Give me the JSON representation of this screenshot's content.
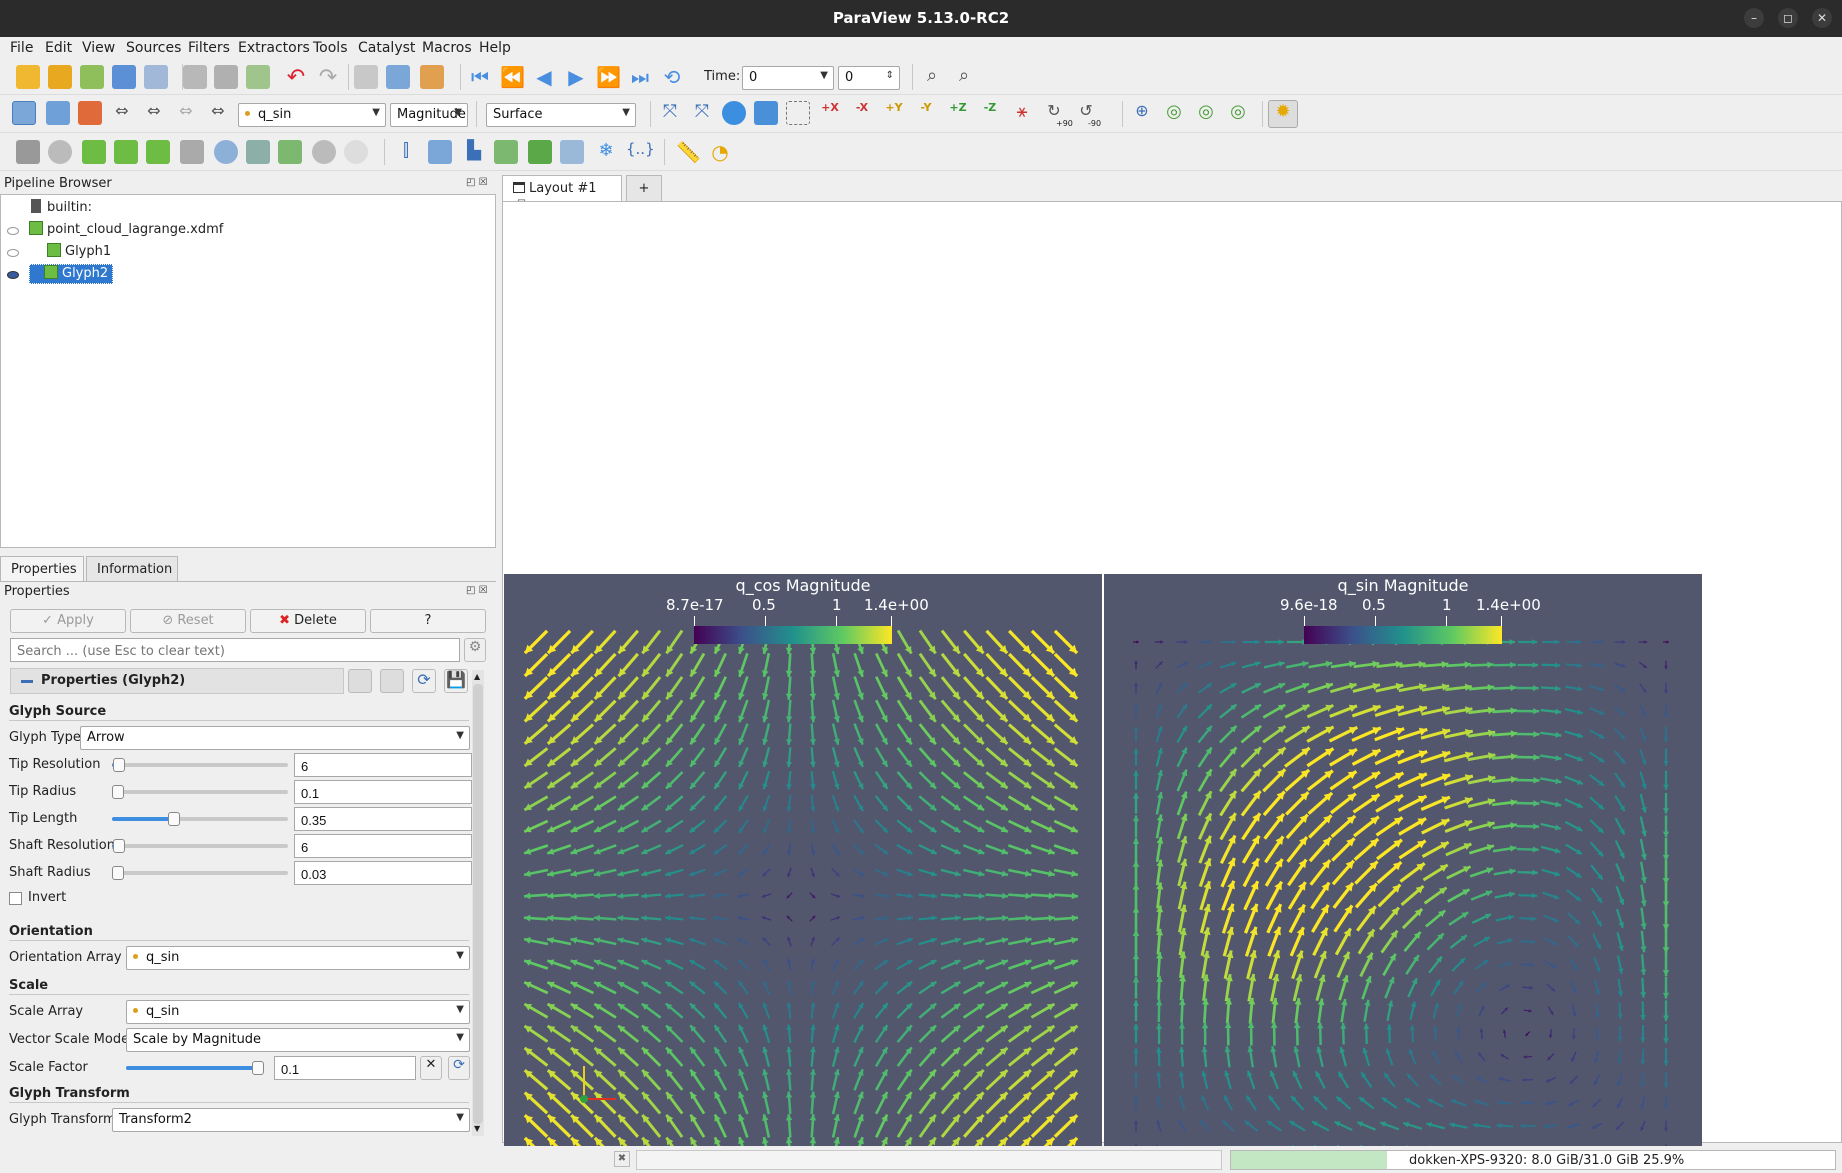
{
  "window": {
    "title": "ParaView 5.13.0-RC2"
  },
  "menu": [
    "File",
    "Edit",
    "View",
    "Sources",
    "Filters",
    "Extractors",
    "Tools",
    "Catalyst",
    "Macros",
    "Help"
  ],
  "toolbar": {
    "time_label": "Time:",
    "time_value": "0",
    "time_step": "0",
    "color_array": "q_sin",
    "color_component": "Magnitude",
    "representation": "Surface",
    "rotate_plus": "+90",
    "rotate_minus": "-90"
  },
  "pipeline": {
    "title": "Pipeline Browser",
    "items": [
      {
        "label": "builtin:"
      },
      {
        "label": "point_cloud_lagrange.xdmf"
      },
      {
        "label": "Glyph1"
      },
      {
        "label": "Glyph2",
        "selected": true
      }
    ]
  },
  "properties": {
    "tabs": [
      "Properties",
      "Information"
    ],
    "title": "Properties",
    "apply_label": "Apply",
    "reset_label": "Reset",
    "delete_label": "Delete",
    "help_label": "?",
    "search_placeholder": "Search ... (use Esc to clear text)",
    "group_title": "Properties (Glyph2)",
    "sections": {
      "glyph_source": "Glyph Source",
      "orientation": "Orientation",
      "scale": "Scale",
      "glyph_transform": "Glyph Transform"
    },
    "glyph_type": {
      "label": "Glyph Type",
      "value": "Arrow"
    },
    "tip_resolution": {
      "label": "Tip Resolution",
      "value": "6",
      "level": 0.04
    },
    "tip_radius": {
      "label": "Tip Radius",
      "value": "0.1",
      "level": 0.0
    },
    "tip_length": {
      "label": "Tip Length",
      "value": "0.35",
      "level": 0.35
    },
    "shaft_resolution": {
      "label": "Shaft Resolution",
      "value": "6",
      "level": 0.04
    },
    "shaft_radius": {
      "label": "Shaft Radius",
      "value": "0.03",
      "level": 0.0
    },
    "invert": {
      "label": "Invert",
      "checked": false
    },
    "orientation_array": {
      "label": "Orientation Array",
      "value": "q_sin"
    },
    "scale_array": {
      "label": "Scale Array",
      "value": "q_sin"
    },
    "vector_scale_mode": {
      "label": "Vector Scale Mode",
      "value": "Scale by Magnitude"
    },
    "scale_factor": {
      "label": "Scale Factor",
      "value": "0.1",
      "level": 0.98
    },
    "glyph_transform": {
      "label": "Glyph Transform",
      "value": "Transform2"
    }
  },
  "layout": {
    "tab_label": "Layout #1",
    "add_label": "+"
  },
  "views": [
    {
      "title": "q_cos Magnitude",
      "ticks": [
        "8.7e-17",
        "0.5",
        "1",
        "1.4e+00"
      ],
      "field": "radial"
    },
    {
      "title": "q_sin Magnitude",
      "ticks": [
        "9.6e-18",
        "0.5",
        "1",
        "1.4e+00"
      ],
      "field": "rotational"
    }
  ],
  "colors": {
    "viewport_bg": "#52576e",
    "selection": "#2e78d0",
    "viridis_start": "#440154",
    "viridis_end": "#fde725"
  },
  "status": {
    "memory": "dokken-XPS-9320: 8.0 GiB/31.0 GiB 25.9%",
    "memory_fraction": 0.259
  }
}
